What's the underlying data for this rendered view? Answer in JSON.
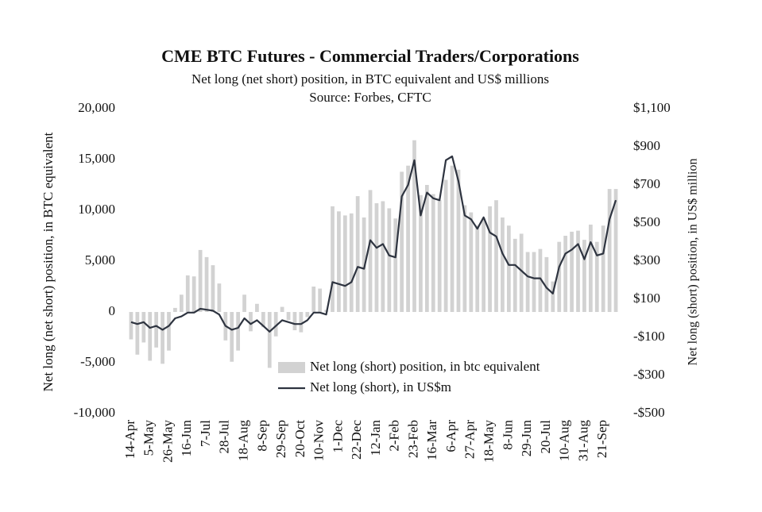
{
  "chart_data": {
    "type": "bar_line",
    "title": "CME BTC Futures - Commercial Traders/Corporations",
    "subtitle": "Net long (net short) position, in BTC equivalent and US$ millions",
    "source": "Source: Forbes, CFTC",
    "ylabel": "Net long (net short) position, in BTC equivalent",
    "y2label": "Net long (short) position, in US$ million",
    "categories": [
      "14-Apr",
      null,
      null,
      "5-May",
      null,
      null,
      "26-May",
      null,
      null,
      "16-Jun",
      null,
      null,
      "7-Jul",
      null,
      null,
      "28-Jul",
      null,
      null,
      "18-Aug",
      null,
      null,
      "8-Sep",
      null,
      null,
      "29-Sep",
      null,
      null,
      "20-Oct",
      null,
      null,
      "10-Nov",
      null,
      null,
      "1-Dec",
      null,
      null,
      "22-Dec",
      null,
      null,
      "12-Jan",
      null,
      null,
      "2-Feb",
      null,
      null,
      "23-Feb",
      null,
      null,
      "16-Mar",
      null,
      null,
      "6-Apr",
      null,
      null,
      "27-Apr",
      null,
      null,
      "18-May",
      null,
      null,
      "8-Jun",
      null,
      null,
      "29-Jun",
      null,
      null,
      "20-Jul",
      null,
      null,
      "10-Aug",
      null,
      null,
      "31-Aug",
      null,
      null,
      "21-Sep",
      null,
      null
    ],
    "series": [
      {
        "name": "Net long (short) position, in btc equivalent",
        "type": "bar",
        "color": "#d2d2d2",
        "values": [
          -2700,
          -4200,
          -3000,
          -4800,
          -3500,
          -5100,
          -3800,
          400,
          1700,
          3600,
          3500,
          6100,
          5400,
          4600,
          2800,
          -2800,
          -4900,
          -3800,
          1700,
          -1900,
          800,
          -1500,
          -5500,
          -2400,
          500,
          -800,
          -1800,
          -2000,
          -500,
          2500,
          2300,
          200,
          10400,
          9900,
          9500,
          9700,
          11400,
          9300,
          12000,
          10700,
          10900,
          10200,
          9200,
          13800,
          14400,
          16900,
          11500,
          12500,
          11600,
          11000,
          13000,
          14400,
          14000,
          10500,
          9800,
          8500,
          9200,
          10400,
          11000,
          9300,
          8500,
          7200,
          7700,
          5900,
          5900,
          6200,
          5400,
          3000,
          6900,
          7500,
          7900,
          8000,
          7100,
          8600,
          6900,
          8500,
          12100,
          12100
        ]
      },
      {
        "name": "Net long (short), in US$m",
        "type": "line",
        "axis": "y2",
        "color": "#2e3440",
        "values": [
          -20,
          -30,
          -20,
          -50,
          -40,
          -60,
          -40,
          0,
          10,
          30,
          30,
          50,
          45,
          40,
          20,
          -40,
          -60,
          -50,
          0,
          -30,
          -10,
          -40,
          -70,
          -40,
          -10,
          -20,
          -30,
          -30,
          -10,
          30,
          30,
          20,
          190,
          180,
          170,
          190,
          270,
          260,
          410,
          370,
          390,
          330,
          320,
          640,
          700,
          830,
          540,
          660,
          630,
          620,
          830,
          850,
          720,
          540,
          520,
          470,
          530,
          450,
          430,
          340,
          280,
          280,
          250,
          220,
          210,
          210,
          160,
          130,
          270,
          340,
          360,
          390,
          310,
          400,
          330,
          340,
          520,
          620
        ]
      }
    ],
    "ylim": [
      -10000,
      20000
    ],
    "yticks": [
      {
        "value": -10000,
        "label": "-10,000"
      },
      {
        "value": -5000,
        "label": "-5,000"
      },
      0,
      {
        "value": 5000,
        "label": "5,000"
      },
      {
        "value": 10000,
        "label": "10,000"
      },
      {
        "value": 15000,
        "label": "15,000"
      },
      {
        "value": 20000,
        "label": "20,000"
      }
    ],
    "y2lim": [
      -500,
      1100
    ],
    "y2ticks": [
      {
        "value": -500,
        "label": "-$500"
      },
      {
        "value": -300,
        "label": "-$300"
      },
      {
        "value": -100,
        "label": "-$100"
      },
      {
        "value": 100,
        "label": "$100"
      },
      {
        "value": 300,
        "label": "$300"
      },
      {
        "value": 500,
        "label": "$500"
      },
      {
        "value": 700,
        "label": "$700"
      },
      {
        "value": 900,
        "label": "$900"
      },
      {
        "value": 1100,
        "label": "$1,100"
      }
    ]
  }
}
